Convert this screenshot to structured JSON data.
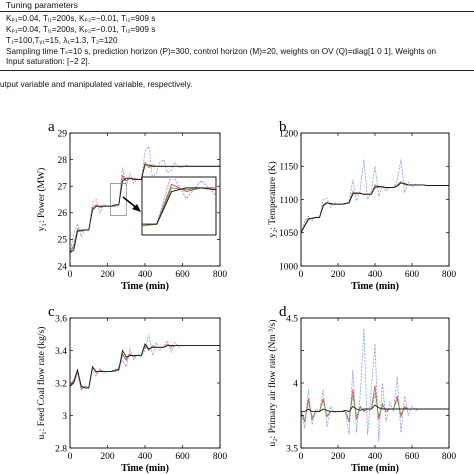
{
  "table": {
    "header": "Tuning parameters",
    "lines": [
      "Kₚ₁=0.04, Tᵢ₁=200s, Kₚ₂=−0.01, Tᵢ₂=909 s",
      "Kₚ₁=0.04, Tᵢ₁=200s, Kₚ₂=−0.01, Tᵢ₂=909 s",
      "T₁=100,Tᵧ₁=15, λ₁=1.3, T₂=120",
      "Sampling time Tₛ=10 s, prediction horizon (P)=300, control horizon (M)=20, weights on OV (Q)=diag[1 0 1], Weights on",
      "Input saturation: [−2 2]."
    ]
  },
  "caption_fragment": "utput variable and manipulated variable, respectively.",
  "series_colors": [
    "#1a1a1a",
    "#e8474a",
    "#4fae4f",
    "#8a9ff5"
  ],
  "chart_data": [
    {
      "type": "line",
      "panel_label": "a",
      "xlabel": "Time (min)",
      "ylabel": "y₁:  Power (MW)",
      "xlim": [
        0,
        800
      ],
      "ylim": [
        24,
        29
      ],
      "xticks": [
        0,
        200,
        400,
        600,
        800
      ],
      "yticks": [
        24,
        25,
        26,
        27,
        28,
        29
      ],
      "grid": false,
      "inset": "zoom of the step near t = 280 min",
      "x": [
        0,
        20,
        40,
        60,
        80,
        100,
        120,
        140,
        160,
        180,
        200,
        220,
        240,
        260,
        280,
        300,
        320,
        340,
        360,
        380,
        400,
        420,
        440,
        460,
        480,
        500,
        520,
        540,
        560,
        580,
        600,
        620,
        640,
        660,
        680,
        700,
        720,
        740,
        760,
        780,
        800
      ],
      "series": [
        {
          "values": [
            24.5,
            24.6,
            25.3,
            25.35,
            25.35,
            25.35,
            26.1,
            26.25,
            26.25,
            26.25,
            26.25,
            26.25,
            26.3,
            26.3,
            27.2,
            27.3,
            27.3,
            27.25,
            27.25,
            27.25,
            27.8,
            27.8,
            27.75,
            27.75,
            27.75,
            27.75,
            27.75,
            27.75,
            27.75,
            27.75,
            27.75,
            27.75,
            27.75,
            27.75,
            27.75,
            27.75,
            27.75,
            27.75,
            27.75,
            27.75,
            27.75
          ]
        },
        {
          "values": [
            24.5,
            24.8,
            25.4,
            25.3,
            25.35,
            25.35,
            26.2,
            26.3,
            26.2,
            26.25,
            26.25,
            26.25,
            26.25,
            26.3,
            27.4,
            27.2,
            27.3,
            27.3,
            27.25,
            27.25,
            27.9,
            27.7,
            27.8,
            27.75,
            27.75,
            27.75,
            27.75,
            27.75,
            27.75,
            27.75,
            27.75,
            27.75,
            27.75,
            27.75,
            27.75,
            27.75,
            27.75,
            27.75,
            27.75,
            27.75,
            27.75
          ]
        },
        {
          "values": [
            24.5,
            24.7,
            25.35,
            25.35,
            25.35,
            25.35,
            26.15,
            26.25,
            26.25,
            26.25,
            26.25,
            26.25,
            26.25,
            26.3,
            27.3,
            27.25,
            27.3,
            27.25,
            27.25,
            27.25,
            27.85,
            27.75,
            27.75,
            27.75,
            27.75,
            27.75,
            27.75,
            27.75,
            27.75,
            27.75,
            27.75,
            27.75,
            27.75,
            27.75,
            27.75,
            27.75,
            27.75,
            27.75,
            27.75,
            27.75,
            27.75
          ]
        },
        {
          "values": [
            24.5,
            25.2,
            25.6,
            25.1,
            25.4,
            25.35,
            26.4,
            26.5,
            26.0,
            26.3,
            26.25,
            26.25,
            26.25,
            26.3,
            27.7,
            27.0,
            27.5,
            27.1,
            27.3,
            27.25,
            28.3,
            28.5,
            27.3,
            27.5,
            27.9,
            28.0,
            27.5,
            27.6,
            27.9,
            27.7,
            27.7,
            27.8,
            27.75,
            27.75,
            27.75,
            27.75,
            27.75,
            27.75,
            27.75,
            27.75,
            27.75
          ]
        }
      ]
    },
    {
      "type": "line",
      "panel_label": "b",
      "xlabel": "Time (min)",
      "ylabel": "y₂:  Temperature (K)",
      "xlim": [
        0,
        800
      ],
      "ylim": [
        1000,
        1200
      ],
      "xticks": [
        0,
        200,
        400,
        600,
        800
      ],
      "yticks": [
        1000,
        1050,
        1100,
        1150,
        1200
      ],
      "grid": false,
      "x": [
        0,
        20,
        40,
        60,
        80,
        100,
        120,
        140,
        160,
        180,
        200,
        220,
        240,
        260,
        280,
        300,
        320,
        340,
        360,
        380,
        400,
        420,
        440,
        460,
        480,
        500,
        520,
        540,
        560,
        580,
        600,
        620,
        640,
        660,
        680,
        700,
        720,
        740,
        760,
        780,
        800
      ],
      "series": [
        {
          "values": [
            1050,
            1060,
            1070,
            1072,
            1073,
            1073,
            1090,
            1095,
            1094,
            1093,
            1093,
            1093,
            1094,
            1095,
            1108,
            1110,
            1109,
            1108,
            1108,
            1108,
            1118,
            1120,
            1119,
            1118,
            1118,
            1118,
            1120,
            1125,
            1124,
            1122,
            1122,
            1122,
            1122,
            1122,
            1121,
            1121,
            1121,
            1121,
            1121,
            1121,
            1121
          ]
        },
        {
          "values": [
            1050,
            1062,
            1072,
            1071,
            1073,
            1073,
            1092,
            1096,
            1093,
            1093,
            1093,
            1093,
            1094,
            1096,
            1112,
            1108,
            1110,
            1107,
            1108,
            1108,
            1122,
            1118,
            1120,
            1117,
            1118,
            1118,
            1122,
            1127,
            1122,
            1122,
            1122,
            1122,
            1122,
            1122,
            1121,
            1121,
            1121,
            1121,
            1121,
            1121,
            1121
          ]
        },
        {
          "values": [
            1050,
            1061,
            1071,
            1072,
            1073,
            1073,
            1091,
            1095,
            1094,
            1093,
            1093,
            1093,
            1094,
            1095,
            1110,
            1109,
            1109,
            1108,
            1108,
            1108,
            1120,
            1119,
            1119,
            1118,
            1118,
            1118,
            1121,
            1126,
            1123,
            1122,
            1122,
            1122,
            1122,
            1122,
            1121,
            1121,
            1121,
            1121,
            1121,
            1121,
            1121
          ]
        },
        {
          "values": [
            1050,
            1068,
            1075,
            1068,
            1074,
            1073,
            1100,
            1102,
            1088,
            1095,
            1093,
            1093,
            1093,
            1097,
            1130,
            1098,
            1115,
            1160,
            1100,
            1112,
            1150,
            1105,
            1120,
            1112,
            1118,
            1118,
            1128,
            1160,
            1110,
            1126,
            1119,
            1123,
            1121,
            1122,
            1121,
            1121,
            1121,
            1121,
            1121,
            1121,
            1121
          ]
        }
      ]
    },
    {
      "type": "line",
      "panel_label": "c",
      "xlabel": "Time (min)",
      "ylabel": "u₁:  Feed Coal flow rate (kg/s)",
      "xlim": [
        0,
        800
      ],
      "ylim": [
        2.8,
        3.6
      ],
      "xticks": [
        0,
        200,
        400,
        600,
        800
      ],
      "yticks": [
        2.8,
        3.0,
        3.2,
        3.4,
        3.6
      ],
      "grid": false,
      "x": [
        0,
        20,
        40,
        60,
        80,
        100,
        120,
        140,
        160,
        180,
        200,
        220,
        240,
        260,
        280,
        300,
        320,
        340,
        360,
        380,
        400,
        420,
        440,
        460,
        480,
        500,
        520,
        540,
        560,
        580,
        600,
        620,
        640,
        660,
        680,
        700,
        720,
        740,
        760,
        780,
        800
      ],
      "series": [
        {
          "values": [
            3.18,
            3.2,
            3.28,
            3.18,
            3.17,
            3.17,
            3.3,
            3.27,
            3.27,
            3.27,
            3.27,
            3.27,
            3.28,
            3.28,
            3.4,
            3.36,
            3.37,
            3.37,
            3.37,
            3.37,
            3.44,
            3.41,
            3.42,
            3.42,
            3.42,
            3.42,
            3.43,
            3.43,
            3.43,
            3.43,
            3.43,
            3.43,
            3.43,
            3.43,
            3.43,
            3.43,
            3.43,
            3.43,
            3.43,
            3.43,
            3.43
          ]
        },
        {
          "values": [
            3.18,
            3.22,
            3.28,
            3.16,
            3.18,
            3.17,
            3.3,
            3.26,
            3.28,
            3.27,
            3.27,
            3.27,
            3.27,
            3.29,
            3.38,
            3.34,
            3.38,
            3.36,
            3.37,
            3.37,
            3.43,
            3.4,
            3.43,
            3.42,
            3.42,
            3.42,
            3.44,
            3.42,
            3.43,
            3.43,
            3.43,
            3.43,
            3.43,
            3.43,
            3.43,
            3.43,
            3.43,
            3.43,
            3.43,
            3.43,
            3.43
          ]
        },
        {
          "values": [
            3.18,
            3.21,
            3.27,
            3.17,
            3.18,
            3.17,
            3.29,
            3.27,
            3.27,
            3.27,
            3.27,
            3.27,
            3.27,
            3.28,
            3.37,
            3.35,
            3.37,
            3.37,
            3.37,
            3.37,
            3.42,
            3.41,
            3.42,
            3.42,
            3.42,
            3.42,
            3.43,
            3.43,
            3.43,
            3.43,
            3.43,
            3.43,
            3.43,
            3.43,
            3.43,
            3.43,
            3.43,
            3.43,
            3.43,
            3.43,
            3.43
          ]
        },
        {
          "values": [
            3.18,
            3.2,
            3.26,
            3.16,
            3.18,
            3.17,
            3.28,
            3.24,
            3.29,
            3.26,
            3.27,
            3.27,
            3.27,
            3.3,
            3.34,
            3.3,
            3.41,
            3.34,
            3.38,
            3.36,
            3.4,
            3.5,
            3.37,
            3.45,
            3.4,
            3.43,
            3.46,
            3.39,
            3.45,
            3.42,
            3.43,
            3.43,
            3.43,
            3.43,
            3.43,
            3.43,
            3.43,
            3.43,
            3.43,
            3.43,
            3.43
          ]
        }
      ]
    },
    {
      "type": "line",
      "panel_label": "d",
      "xlabel": "Time (min)",
      "ylabel": "u₂:  Primary air flow rate (Nm ³/s)",
      "xlim": [
        0,
        800
      ],
      "ylim": [
        3.5,
        4.5
      ],
      "xticks": [
        0,
        200,
        400,
        600,
        800
      ],
      "yticks": [
        3.5,
        3.75,
        4.0,
        4.25,
        4.5
      ],
      "yticklabels": [
        "3.5",
        "",
        "4",
        "",
        "4.5"
      ],
      "grid": false,
      "x": [
        0,
        20,
        40,
        60,
        80,
        100,
        120,
        140,
        160,
        180,
        200,
        220,
        240,
        260,
        280,
        300,
        320,
        340,
        360,
        380,
        400,
        420,
        440,
        460,
        480,
        500,
        520,
        540,
        560,
        580,
        600,
        620,
        640,
        660,
        680,
        700,
        720,
        740,
        760,
        780,
        800
      ],
      "series": [
        {
          "values": [
            3.78,
            3.78,
            3.8,
            3.78,
            3.78,
            3.78,
            3.8,
            3.79,
            3.78,
            3.78,
            3.78,
            3.78,
            3.79,
            3.78,
            3.82,
            3.8,
            3.79,
            3.8,
            3.8,
            3.8,
            3.83,
            3.81,
            3.8,
            3.8,
            3.8,
            3.8,
            3.8,
            3.8,
            3.8,
            3.8,
            3.8,
            3.8,
            3.8,
            3.8,
            3.8,
            3.8,
            3.8,
            3.8,
            3.8,
            3.8,
            3.8
          ]
        },
        {
          "values": [
            3.78,
            3.7,
            3.88,
            3.72,
            3.78,
            3.78,
            3.88,
            3.74,
            3.78,
            3.78,
            3.78,
            3.78,
            3.78,
            3.7,
            3.95,
            3.72,
            3.82,
            3.78,
            3.8,
            3.8,
            3.98,
            3.72,
            3.84,
            3.78,
            3.8,
            3.8,
            3.9,
            3.74,
            3.82,
            3.8,
            3.8,
            3.8,
            3.8,
            3.8,
            3.8,
            3.8,
            3.8,
            3.8,
            3.8,
            3.8,
            3.8
          ]
        },
        {
          "values": [
            3.78,
            3.72,
            3.85,
            3.74,
            3.78,
            3.78,
            3.86,
            3.75,
            3.78,
            3.78,
            3.78,
            3.78,
            3.78,
            3.72,
            3.9,
            3.75,
            3.81,
            3.79,
            3.8,
            3.8,
            3.92,
            3.75,
            3.82,
            3.79,
            3.8,
            3.8,
            3.87,
            3.76,
            3.81,
            3.8,
            3.8,
            3.8,
            3.8,
            3.8,
            3.8,
            3.8,
            3.8,
            3.8,
            3.8,
            3.8,
            3.8
          ]
        },
        {
          "values": [
            3.78,
            3.65,
            3.95,
            3.68,
            3.8,
            3.78,
            3.95,
            3.66,
            3.82,
            3.77,
            3.78,
            3.78,
            3.78,
            3.6,
            4.1,
            3.62,
            3.9,
            4.42,
            3.6,
            3.95,
            4.3,
            3.55,
            4.0,
            3.7,
            3.85,
            3.78,
            4.05,
            3.62,
            3.9,
            3.75,
            3.82,
            3.79,
            3.8,
            3.8,
            3.8,
            3.8,
            3.8,
            3.8,
            3.8,
            3.8,
            3.8
          ]
        }
      ]
    }
  ]
}
